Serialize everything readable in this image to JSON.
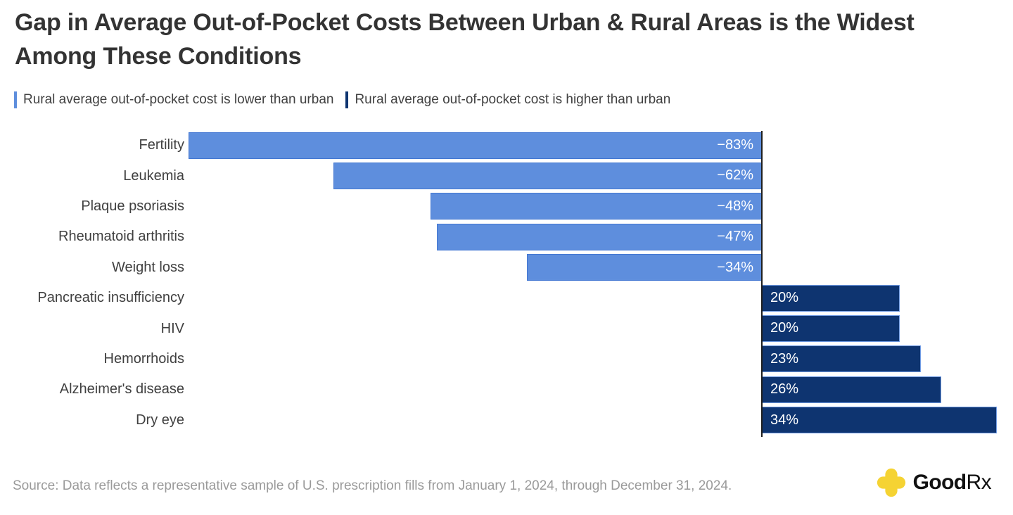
{
  "title": "Gap in Average Out-of-Pocket Costs Between Urban & Rural Areas is the Widest Among These Conditions",
  "legend": {
    "lower": {
      "label": "Rural average out-of-pocket cost is lower than urban",
      "color": "#5E8EDD"
    },
    "higher": {
      "label": "Rural average out-of-pocket cost is higher than urban",
      "color": "#0E3470"
    }
  },
  "chart_data": {
    "type": "bar",
    "orientation": "horizontal",
    "title": "Gap in Average Out-of-Pocket Costs Between Urban & Rural Areas is the Widest Among These Conditions",
    "categories": [
      "Fertility",
      "Leukemia",
      "Plaque psoriasis",
      "Rheumatoid arthritis",
      "Weight loss",
      "Pancreatic insufficiency",
      "HIV",
      "Hemorrhoids",
      "Alzheimer's disease",
      "Dry eye"
    ],
    "values": [
      -83,
      -62,
      -48,
      -47,
      -34,
      20,
      20,
      23,
      26,
      34
    ],
    "value_labels": [
      "−83%",
      "−62%",
      "−48%",
      "−47%",
      "−34%",
      "20%",
      "20%",
      "23%",
      "26%",
      "34%"
    ],
    "unit": "percent",
    "xlim": [
      -83,
      34
    ],
    "grid": false,
    "legend_position": "top",
    "series_colors": {
      "negative": "#5E8EDD",
      "positive": "#0E3470"
    },
    "value_label_color": "#ffffff",
    "zero_axis_color": "#1f1f1f"
  },
  "source": "Source: Data reflects a representative sample of U.S. prescription fills from January 1, 2024, through December 31, 2024.",
  "logo": {
    "name": "GoodRx",
    "brand_bold": "Good",
    "brand_suffix": "Rx",
    "cross_color": "#F5D333"
  }
}
